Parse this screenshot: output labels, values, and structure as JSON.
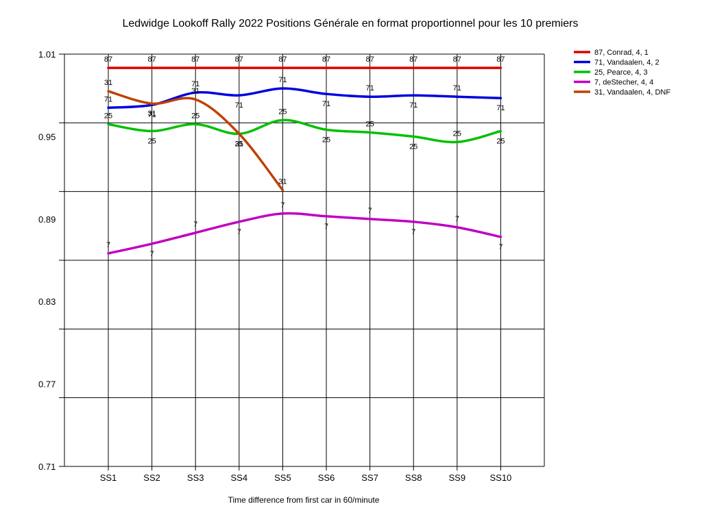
{
  "chart_data": {
    "type": "line",
    "title": "Ledwidge Lookoff Rally 2022  Positions Générale en format proportionnel pour les 10 premiers",
    "xlabel": "Time difference from first car in 60/minute",
    "ylabel": "",
    "categories": [
      "SS1",
      "SS2",
      "SS3",
      "SS4",
      "SS5",
      "SS6",
      "SS7",
      "SS8",
      "SS9",
      "SS10"
    ],
    "y_ticks": [
      1.01,
      0.95,
      0.89,
      0.83,
      0.77,
      0.71
    ],
    "ylim": [
      0.71,
      1.01
    ],
    "grid": "horizontal",
    "legend_position": "top-right",
    "series": [
      {
        "name": "87, Conrad, 4, 1",
        "label": "87",
        "color": "#e00000",
        "values": [
          1.0,
          1.0,
          1.0,
          1.0,
          1.0,
          1.0,
          1.0,
          1.0,
          1.0,
          1.0
        ]
      },
      {
        "name": "71, Vandaalen, 4, 2",
        "label": "71",
        "color": "#0000e0",
        "values": [
          0.971,
          0.973,
          0.982,
          0.98,
          0.985,
          0.981,
          0.979,
          0.98,
          0.979,
          0.978
        ]
      },
      {
        "name": "25, Pearce, 4, 3",
        "label": "25",
        "color": "#00c000",
        "values": [
          0.959,
          0.954,
          0.959,
          0.952,
          0.962,
          0.955,
          0.953,
          0.95,
          0.946,
          0.954
        ]
      },
      {
        "name": "7, deStecher, 4, 4",
        "label": "7",
        "color": "#c000c0",
        "values": [
          0.865,
          0.872,
          0.88,
          0.888,
          0.894,
          0.892,
          0.89,
          0.888,
          0.884,
          0.877
        ]
      },
      {
        "name": "31, Vandaalen, 4, DNF",
        "label": "31",
        "color": "#c04000",
        "values": [
          0.983,
          0.974,
          0.977,
          0.952,
          0.911,
          null,
          null,
          null,
          null,
          null
        ]
      }
    ]
  }
}
